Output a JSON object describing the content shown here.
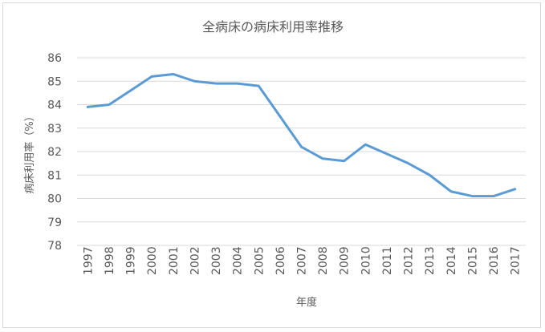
{
  "chart_data": {
    "type": "line",
    "title": "全病床の病床利用率推移",
    "xlabel": "年度",
    "ylabel": "病床利用率（%）",
    "ylim": [
      78,
      86
    ],
    "yticks": [
      78,
      79,
      80,
      81,
      82,
      83,
      84,
      85,
      86
    ],
    "grid": true,
    "categories": [
      "1997",
      "1998",
      "1999",
      "2000",
      "2001",
      "2002",
      "2003",
      "2004",
      "2005",
      "2006",
      "2007",
      "2008",
      "2009",
      "2010",
      "2011",
      "2012",
      "2013",
      "2014",
      "2015",
      "2016",
      "2017"
    ],
    "series": [
      {
        "values": [
          83.9,
          84.0,
          84.6,
          85.2,
          85.3,
          85.0,
          84.9,
          84.9,
          84.8,
          83.5,
          82.2,
          81.7,
          81.6,
          82.3,
          81.9,
          81.5,
          81.0,
          80.3,
          80.1,
          80.1,
          80.4
        ],
        "color": "#5b9bd5"
      }
    ]
  }
}
